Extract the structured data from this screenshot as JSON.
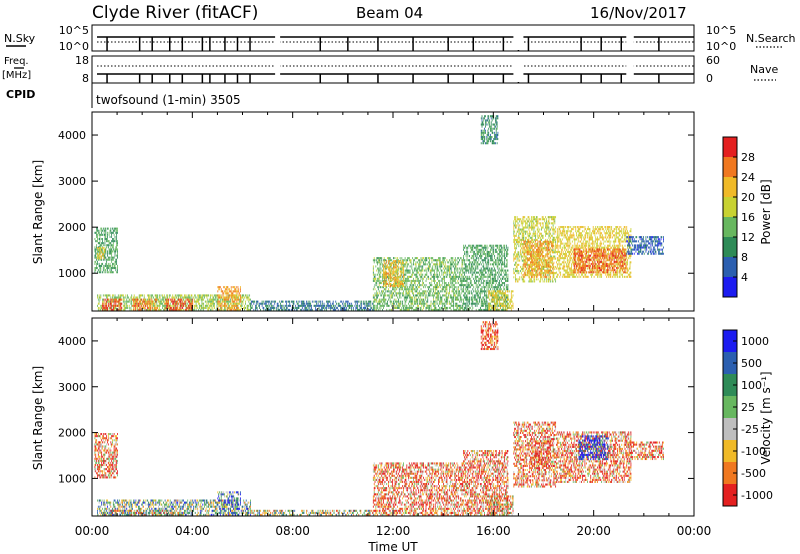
{
  "header": {
    "title": "Clyde River (fitACF)",
    "beam": "Beam 04",
    "date": "16/Nov/2017"
  },
  "top_panels": {
    "nsky_label": "N.Sky",
    "nsky_ticks": [
      "10^5",
      "10^0"
    ],
    "nsearch_label": "N.Search",
    "nsearch_ticks": [
      "10^5",
      "10^0"
    ],
    "freq_label_1": "Freq.",
    "freq_label_2": "[MHz]",
    "freq_ticks": [
      "18",
      "8"
    ],
    "nave_label": "Nave",
    "nave_ticks": [
      "60",
      "0"
    ],
    "cpid_label": "CPID",
    "cpid_text": "twofsound (1-min) 3505"
  },
  "chart_data": [
    {
      "type": "heatmap",
      "title": "",
      "xlabel": "Time UT",
      "ylabel": "Slant Range [km]",
      "x_ticks": [
        "00:00",
        "04:00",
        "08:00",
        "12:00",
        "16:00",
        "20:00",
        "00:00"
      ],
      "xlim_hours": [
        0,
        24
      ],
      "y_ticks": [
        1000,
        2000,
        3000,
        4000
      ],
      "ylim": [
        180,
        4500
      ],
      "colorbar_label": "Power [dB]",
      "colorbar_ticks": [
        4,
        8,
        12,
        16,
        20,
        24,
        28
      ],
      "colorbar_range": [
        0,
        32
      ],
      "colors": [
        "#1c1cf0",
        "#2b5fb0",
        "#2e8b57",
        "#67b75f",
        "#c8d232",
        "#f0ba28",
        "#f07820",
        "#e42020"
      ],
      "patches": [
        {
          "t": [
            0.1,
            1.0
          ],
          "r": [
            1000,
            1950
          ],
          "v": 12
        },
        {
          "t": [
            0.2,
            0.5
          ],
          "r": [
            1300,
            1550
          ],
          "v": 20
        },
        {
          "t": [
            0.2,
            6.3
          ],
          "r": [
            180,
            520
          ],
          "v": 16
        },
        {
          "t": [
            0.4,
            1.2
          ],
          "r": [
            180,
            420
          ],
          "v": 28
        },
        {
          "t": [
            1.6,
            2.6
          ],
          "r": [
            180,
            420
          ],
          "v": 26
        },
        {
          "t": [
            2.9,
            4.0
          ],
          "r": [
            180,
            420
          ],
          "v": 28
        },
        {
          "t": [
            5.0,
            5.9
          ],
          "r": [
            180,
            700
          ],
          "v": 24
        },
        {
          "t": [
            6.3,
            11.2
          ],
          "r": [
            180,
            380
          ],
          "v": 8
        },
        {
          "t": [
            11.2,
            14.8
          ],
          "r": [
            180,
            1350
          ],
          "v": 14
        },
        {
          "t": [
            11.6,
            12.4
          ],
          "r": [
            700,
            1250
          ],
          "v": 22
        },
        {
          "t": [
            14.8,
            16.6
          ],
          "r": [
            180,
            1600
          ],
          "v": 12
        },
        {
          "t": [
            15.8,
            16.8
          ],
          "r": [
            180,
            600
          ],
          "v": 20
        },
        {
          "t": [
            16.8,
            18.5
          ],
          "r": [
            800,
            2200
          ],
          "v": 18
        },
        {
          "t": [
            17.2,
            18.4
          ],
          "r": [
            900,
            1700
          ],
          "v": 24
        },
        {
          "t": [
            18.5,
            21.5
          ],
          "r": [
            900,
            2000
          ],
          "v": 20
        },
        {
          "t": [
            19.2,
            21.3
          ],
          "r": [
            1000,
            1500
          ],
          "v": 27
        },
        {
          "t": [
            21.3,
            22.8
          ],
          "r": [
            1400,
            1800
          ],
          "v": 6
        },
        {
          "t": [
            15.5,
            16.2
          ],
          "r": [
            3800,
            4400
          ],
          "v": 10
        }
      ]
    },
    {
      "type": "heatmap",
      "title": "",
      "xlabel": "Time UT",
      "ylabel": "Slant Range [km]",
      "x_ticks": [
        "00:00",
        "04:00",
        "08:00",
        "12:00",
        "16:00",
        "20:00",
        "00:00"
      ],
      "xlim_hours": [
        0,
        24
      ],
      "y_ticks": [
        1000,
        2000,
        3000,
        4000
      ],
      "ylim": [
        180,
        4500
      ],
      "colorbar_label": "Velocity [m s⁻¹]",
      "colorbar_ticks": [
        "1000",
        "500",
        "100",
        "25",
        "-25",
        "-100",
        "-500",
        "-1000"
      ],
      "colors": [
        "#1c1cf0",
        "#2b5fb0",
        "#2e8b57",
        "#67b75f",
        "#bebebe",
        "#f0ba28",
        "#f07820",
        "#e42020"
      ],
      "patches": [
        {
          "t": [
            0.1,
            1.0
          ],
          "r": [
            1000,
            1950
          ],
          "v": 6
        },
        {
          "t": [
            0.2,
            6.3
          ],
          "r": [
            180,
            520
          ],
          "v": 3
        },
        {
          "t": [
            0.4,
            3.5
          ],
          "r": [
            180,
            300
          ],
          "v": 4
        },
        {
          "t": [
            5.0,
            5.9
          ],
          "r": [
            180,
            700
          ],
          "v": 2
        },
        {
          "t": [
            6.3,
            11.2
          ],
          "r": [
            180,
            300
          ],
          "v": 4
        },
        {
          "t": [
            11.2,
            14.8
          ],
          "r": [
            180,
            1350
          ],
          "v": 6
        },
        {
          "t": [
            14.8,
            16.6
          ],
          "r": [
            180,
            1600
          ],
          "v": 6
        },
        {
          "t": [
            15.8,
            16.8
          ],
          "r": [
            180,
            600
          ],
          "v": 5
        },
        {
          "t": [
            16.8,
            18.5
          ],
          "r": [
            800,
            2200
          ],
          "v": 6
        },
        {
          "t": [
            17.5,
            18.3
          ],
          "r": [
            1200,
            1800
          ],
          "v": 7
        },
        {
          "t": [
            18.5,
            21.5
          ],
          "r": [
            900,
            2000
          ],
          "v": 6
        },
        {
          "t": [
            19.4,
            20.6
          ],
          "r": [
            1400,
            1900
          ],
          "v": 0
        },
        {
          "t": [
            21.3,
            22.8
          ],
          "r": [
            1400,
            1800
          ],
          "v": 6
        },
        {
          "t": [
            15.5,
            16.2
          ],
          "r": [
            3800,
            4400
          ],
          "v": 7
        }
      ]
    }
  ]
}
